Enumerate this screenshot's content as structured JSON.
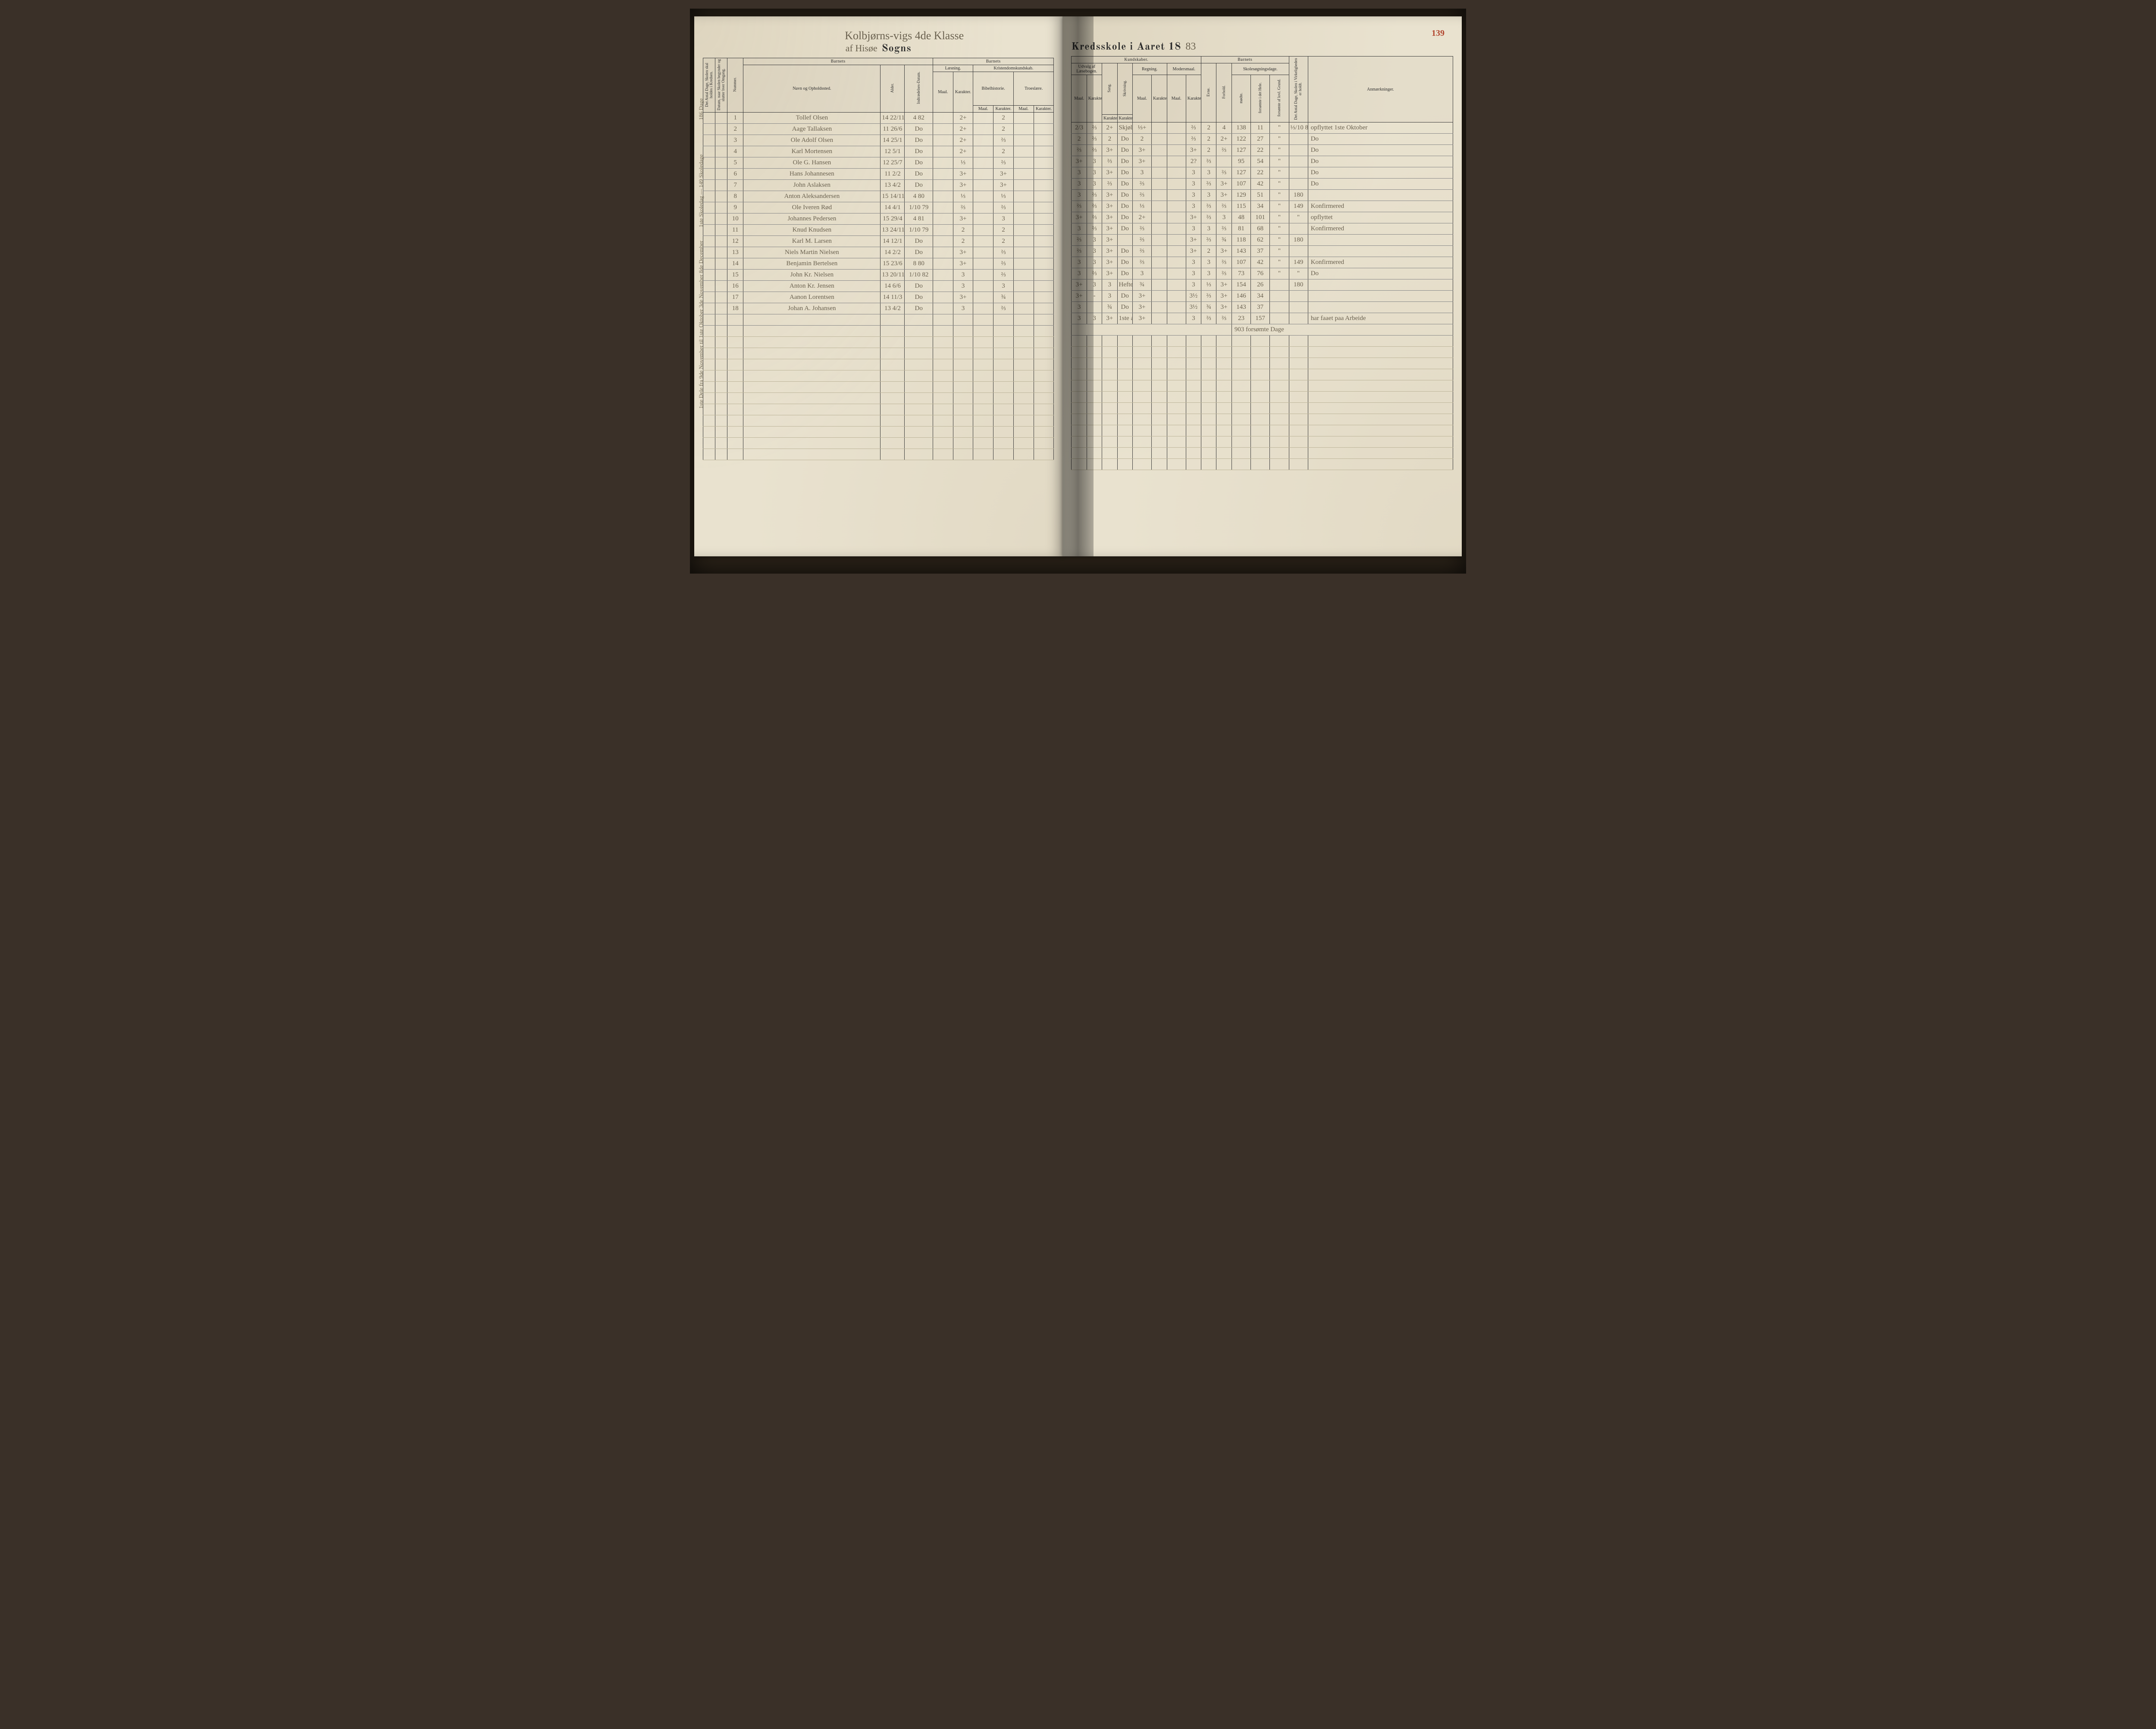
{
  "title_left_script_prefix": "af Hisøe",
  "title_left_print": "Sogns",
  "title_top_script": "Kolbjørns-vigs 4de Klasse",
  "title_right_print": "Kredsskole i Aaret 18",
  "title_right_year_suffix": "83",
  "page_number": "139",
  "colors": {
    "paper": "#e9e2cf",
    "ink": "#2b2b2b",
    "script": "#6b6250",
    "page_number": "#b2462f",
    "rule": "#3a3a3a",
    "faint_rule": "#bdb59a"
  },
  "left_margin_note_1": "186 Dage",
  "left_margin_note_2": "1ste Skoledag — 149 Skoledage",
  "left_margin_note_3": "1ste Dele fra 9de November til 1ste Oktober 3de November 8de December",
  "headers": {
    "left": {
      "col_antal_dage": "Det Antal Dage, Skolen skal holdes i Kredsen.",
      "col_datum_naar": "Datum, naar Skolen begynder og slutter hver Omgang.",
      "col_nummer": "Nummer.",
      "barnets": "Barnets",
      "navn": "Navn og Opholdssted.",
      "alder": "Alder.",
      "indtr": "Indtrædelses-Datum.",
      "laesning": "Læsning.",
      "kristendom": "Kristendomskundskab.",
      "bibel": "Bibelhistorie.",
      "troes": "Troeslære.",
      "maal": "Maal.",
      "karakter": "Karakter."
    },
    "right": {
      "kundskaber": "Kundskaber.",
      "udvalg": "Udvalg af Læsebogen.",
      "sang": "Sang.",
      "skrivning": "Skrivning.",
      "regning": "Regning.",
      "modersmaal": "Modersmaal.",
      "barnets": "Barnets",
      "evne": "Evne.",
      "forhold": "Forhold.",
      "skolesogning": "Skolesøgningsdage.",
      "modte": "mødte.",
      "forsomte": "forsømte i det Hele.",
      "forsomte_lov": "forsømte af lovl. Grund.",
      "antal_virk": "Det Antal Dage, Skolen i Virkeligheden er holdt.",
      "anm": "Anmærkninger.",
      "maal": "Maal.",
      "karakter": "Karakter."
    }
  },
  "rows": [
    {
      "num": "1",
      "name": "Tollef Olsen",
      "age": "14 22/11",
      "ind": "4 82",
      "l_m": "",
      "l_k": "2+",
      "b_m": "",
      "b_k": "2",
      "t_m": "",
      "t_k": "",
      "u_m": "2/3",
      "u_k": "⅔",
      "sa": "2+",
      "sk": "Skjøl 2nd",
      "r_m": "⅓+",
      "r_k": "",
      "m_m": "",
      "m_k": "⅔",
      "ev": "2",
      "fo": "4",
      "mo": "138",
      "fh": "11",
      "fl": "\"",
      "vd": "⅓/10 83 149",
      "anm": "opflyttet 1ste Oktober"
    },
    {
      "num": "2",
      "name": "Aage Tallaksen",
      "age": "11 26/6",
      "ind": "Do",
      "l_m": "",
      "l_k": "2+",
      "b_m": "",
      "b_k": "2",
      "t_m": "",
      "t_k": "",
      "u_m": "2",
      "u_k": "⅔",
      "sa": "2",
      "sk": "Do",
      "r_m": "2",
      "r_k": "",
      "m_m": "",
      "m_k": "⅔",
      "ev": "2",
      "fo": "2+",
      "mo": "122",
      "fh": "27",
      "fl": "\"",
      "vd": "",
      "anm": "Do"
    },
    {
      "num": "3",
      "name": "Ole Adolf Olsen",
      "age": "14 25/1",
      "ind": "Do",
      "l_m": "",
      "l_k": "2+",
      "b_m": "",
      "b_k": "⅔",
      "t_m": "",
      "t_k": "",
      "u_m": "⅔",
      "u_k": "⅔",
      "sa": "3+",
      "sk": "Do",
      "r_m": "3+",
      "r_k": "",
      "m_m": "",
      "m_k": "3+",
      "ev": "2",
      "fo": "⅔",
      "mo": "127",
      "fh": "22",
      "fl": "\"",
      "vd": "",
      "anm": "Do"
    },
    {
      "num": "4",
      "name": "Karl Mortensen",
      "age": "12 5/1",
      "ind": "Do",
      "l_m": "",
      "l_k": "2+",
      "b_m": "",
      "b_k": "2",
      "t_m": "",
      "t_k": "",
      "u_m": "3+",
      "u_k": "3",
      "sa": "⅔",
      "sk": "Do",
      "r_m": "3+",
      "r_k": "",
      "m_m": "",
      "m_k": "2?",
      "ev": "⅔",
      "fo": "",
      "mo": "95",
      "fh": "54",
      "fl": "\"",
      "vd": "",
      "anm": "Do"
    },
    {
      "num": "5",
      "name": "Ole G. Hansen",
      "age": "12 25/7",
      "ind": "Do",
      "l_m": "",
      "l_k": "⅓",
      "b_m": "",
      "b_k": "⅔",
      "t_m": "",
      "t_k": "",
      "u_m": "3",
      "u_k": "3",
      "sa": "3+",
      "sk": "Do",
      "r_m": "3",
      "r_k": "",
      "m_m": "",
      "m_k": "3",
      "ev": "3",
      "fo": "⅔",
      "mo": "127",
      "fh": "22",
      "fl": "\"",
      "vd": "",
      "anm": "Do"
    },
    {
      "num": "6",
      "name": "Hans Johannesen",
      "age": "11 2/2",
      "ind": "Do",
      "l_m": "",
      "l_k": "3+",
      "b_m": "",
      "b_k": "3+",
      "t_m": "",
      "t_k": "",
      "u_m": "3",
      "u_k": "3",
      "sa": "⅔",
      "sk": "Do",
      "r_m": "⅔",
      "r_k": "",
      "m_m": "",
      "m_k": "3",
      "ev": "⅔",
      "fo": "3+",
      "mo": "107",
      "fh": "42",
      "fl": "\"",
      "vd": "",
      "anm": "Do"
    },
    {
      "num": "7",
      "name": "John Aslaksen",
      "age": "13 4/2",
      "ind": "Do",
      "l_m": "",
      "l_k": "3+",
      "b_m": "",
      "b_k": "3+",
      "t_m": "",
      "t_k": "",
      "u_m": "3",
      "u_k": "⅔",
      "sa": "3+",
      "sk": "Do",
      "r_m": "⅔",
      "r_k": "",
      "m_m": "",
      "m_k": "3",
      "ev": "3",
      "fo": "3+",
      "mo": "129",
      "fh": "51",
      "fl": "\"",
      "vd": "180",
      "anm": ""
    },
    {
      "num": "8",
      "name": "Anton Aleksandersen",
      "age": "15 14/11",
      "ind": "4 80",
      "l_m": "",
      "l_k": "⅓",
      "b_m": "",
      "b_k": "⅓",
      "t_m": "",
      "t_k": "",
      "u_m": "⅔",
      "u_k": "⅔",
      "sa": "3+",
      "sk": "Do",
      "r_m": "⅓",
      "r_k": "",
      "m_m": "",
      "m_k": "3",
      "ev": "⅔",
      "fo": "⅔",
      "mo": "115",
      "fh": "34",
      "fl": "\"",
      "vd": "149",
      "anm": "Konfirmered"
    },
    {
      "num": "9",
      "name": "Ole Iveren Rød",
      "age": "14 4/1",
      "ind": "1/10 79",
      "l_m": "",
      "l_k": "⅔",
      "b_m": "",
      "b_k": "⅔",
      "t_m": "",
      "t_k": "",
      "u_m": "3+",
      "u_k": "⅔",
      "sa": "3+",
      "sk": "Do",
      "r_m": "2+",
      "r_k": "",
      "m_m": "",
      "m_k": "3+",
      "ev": "⅔",
      "fo": "3",
      "mo": "48",
      "fh": "101",
      "fl": "\"",
      "vd": "\"",
      "anm": "opflyttet"
    },
    {
      "num": "10",
      "name": "Johannes Pedersen",
      "age": "15 29/4",
      "ind": "4 81",
      "l_m": "",
      "l_k": "3+",
      "b_m": "",
      "b_k": "3",
      "t_m": "",
      "t_k": "",
      "u_m": "3",
      "u_k": "⅔",
      "sa": "3+",
      "sk": "Do",
      "r_m": "⅔",
      "r_k": "",
      "m_m": "",
      "m_k": "3",
      "ev": "3",
      "fo": "⅔",
      "mo": "81",
      "fh": "68",
      "fl": "\"",
      "vd": "",
      "anm": "Konfirmered"
    },
    {
      "num": "11",
      "name": "Knud Knudsen",
      "age": "13 24/11",
      "ind": "1/10 79",
      "l_m": "",
      "l_k": "2",
      "b_m": "",
      "b_k": "2",
      "t_m": "",
      "t_k": "",
      "u_m": "⅔",
      "u_k": "3",
      "sa": "3+",
      "sk": "",
      "r_m": "⅔",
      "r_k": "",
      "m_m": "",
      "m_k": "3+",
      "ev": "⅔",
      "fo": "¾",
      "mo": "118",
      "fh": "62",
      "fl": "\"",
      "vd": "180",
      "anm": ""
    },
    {
      "num": "12",
      "name": "Karl M. Larsen",
      "age": "14 12/1",
      "ind": "Do",
      "l_m": "",
      "l_k": "2",
      "b_m": "",
      "b_k": "2",
      "t_m": "",
      "t_k": "",
      "u_m": "⅔",
      "u_k": "3",
      "sa": "3+",
      "sk": "Do",
      "r_m": "⅔",
      "r_k": "",
      "m_m": "",
      "m_k": "3+",
      "ev": "2",
      "fo": "3+",
      "mo": "143",
      "fh": "37",
      "fl": "\"",
      "vd": "",
      "anm": ""
    },
    {
      "num": "13",
      "name": "Niels Martin Nielsen",
      "age": "14 2/2",
      "ind": "Do",
      "l_m": "",
      "l_k": "3+",
      "b_m": "",
      "b_k": "⅔",
      "t_m": "",
      "t_k": "",
      "u_m": "3",
      "u_k": "3",
      "sa": "3+",
      "sk": "Do",
      "r_m": "⅔",
      "r_k": "",
      "m_m": "",
      "m_k": "3",
      "ev": "3",
      "fo": "⅔",
      "mo": "107",
      "fh": "42",
      "fl": "\"",
      "vd": "149",
      "anm": "Konfirmered"
    },
    {
      "num": "14",
      "name": "Benjamin Bertelsen",
      "age": "15 23/6",
      "ind": "8 80",
      "l_m": "",
      "l_k": "3+",
      "b_m": "",
      "b_k": "⅔",
      "t_m": "",
      "t_k": "",
      "u_m": "3",
      "u_k": "⅔",
      "sa": "3+",
      "sk": "Do",
      "r_m": "3",
      "r_k": "",
      "m_m": "",
      "m_k": "3",
      "ev": "3",
      "fo": "⅔",
      "mo": "73",
      "fh": "76",
      "fl": "\"",
      "vd": "\"",
      "anm": "Do"
    },
    {
      "num": "15",
      "name": "John Kr. Nielsen",
      "age": "13 20/11",
      "ind": "1/10 82",
      "l_m": "",
      "l_k": "3",
      "b_m": "",
      "b_k": "⅔",
      "t_m": "",
      "t_k": "",
      "u_m": "3+",
      "u_k": "3",
      "sa": "3",
      "sk": "Hefte",
      "r_m": "¾",
      "r_k": "",
      "m_m": "",
      "m_k": "3",
      "ev": "⅓",
      "fo": "3+",
      "mo": "154",
      "fh": "26",
      "fl": "",
      "vd": "180",
      "anm": ""
    },
    {
      "num": "16",
      "name": "Anton Kr. Jensen",
      "age": "14 6/6",
      "ind": "Do",
      "l_m": "",
      "l_k": "3",
      "b_m": "",
      "b_k": "3",
      "t_m": "",
      "t_k": "",
      "u_m": "3+",
      "u_k": "-",
      "sa": "3",
      "sk": "Do",
      "r_m": "3+",
      "r_k": "",
      "m_m": "",
      "m_k": "3½",
      "ev": "⅔",
      "fo": "3+",
      "mo": "146",
      "fh": "34",
      "fl": "",
      "vd": "",
      "anm": ""
    },
    {
      "num": "17",
      "name": "Aanon Lorentsen",
      "age": "14 11/3",
      "ind": "Do",
      "l_m": "",
      "l_k": "3+",
      "b_m": "",
      "b_k": "¾",
      "t_m": "",
      "t_k": "",
      "u_m": "3",
      "u_k": "",
      "sa": "¾",
      "sk": "Do",
      "r_m": "3+",
      "r_k": "",
      "m_m": "",
      "m_k": "3½",
      "ev": "¾",
      "fo": "3+",
      "mo": "143",
      "fh": "37",
      "fl": "",
      "vd": "",
      "anm": ""
    },
    {
      "num": "18",
      "name": "Johan A. Johansen",
      "age": "13 4/2",
      "ind": "Do",
      "l_m": "",
      "l_k": "3",
      "b_m": "",
      "b_k": "⅔",
      "t_m": "",
      "t_k": "",
      "u_m": "3",
      "u_k": "3",
      "sa": "3+",
      "sk": "1ste afd",
      "r_m": "3+",
      "r_k": "",
      "m_m": "",
      "m_k": "3",
      "ev": "⅔",
      "fo": "⅔",
      "mo": "23",
      "fh": "157",
      "fl": "",
      "vd": "",
      "anm": "har faaet paa Arbeide"
    }
  ],
  "footer_note": "903 forsømte Dage",
  "blank_rows": 12
}
